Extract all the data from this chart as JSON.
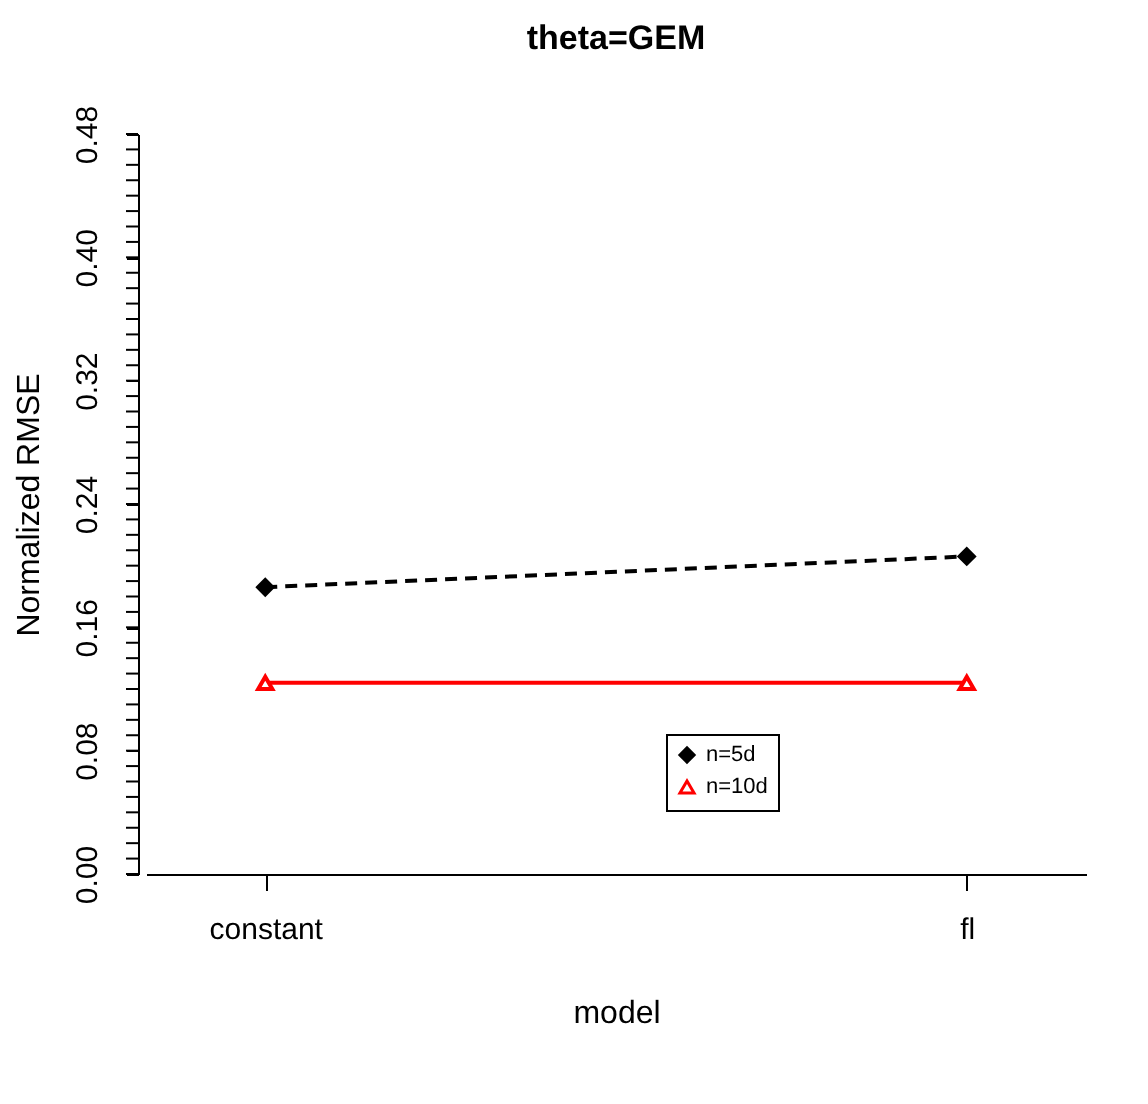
{
  "chart_data": {
    "type": "line",
    "title": "theta=GEM",
    "xlabel": "model",
    "ylabel": "Normalized RMSE",
    "categories": [
      "constant",
      "fl"
    ],
    "series": [
      {
        "name": "n=5d",
        "color": "#000000",
        "values": [
          0.186,
          0.206
        ],
        "marker": "diamond",
        "line_style": "dashed"
      },
      {
        "name": "n=10d",
        "color": "#ff0000",
        "values": [
          0.124,
          0.124
        ],
        "marker": "triangle",
        "line_style": "solid"
      }
    ],
    "ylim": [
      0,
      0.48
    ],
    "yticks": [
      {
        "value": 0,
        "label": "0.00"
      },
      {
        "value": 0.01,
        "label": null
      },
      {
        "value": 0.02,
        "label": null
      },
      {
        "value": 0.03,
        "label": null
      },
      {
        "value": 0.04,
        "label": null
      },
      {
        "value": 0.05,
        "label": null
      },
      {
        "value": 0.06,
        "label": null
      },
      {
        "value": 0.07,
        "label": null
      },
      {
        "value": 0.08,
        "label": "0.08"
      },
      {
        "value": 0.09,
        "label": null
      },
      {
        "value": 0.1,
        "label": null
      },
      {
        "value": 0.11,
        "label": null
      },
      {
        "value": 0.12,
        "label": null
      },
      {
        "value": 0.13,
        "label": null
      },
      {
        "value": 0.14,
        "label": null
      },
      {
        "value": 0.15,
        "label": null
      },
      {
        "value": 0.16,
        "label": "0.16"
      },
      {
        "value": 0.17,
        "label": null
      },
      {
        "value": 0.18,
        "label": null
      },
      {
        "value": 0.19,
        "label": null
      },
      {
        "value": 0.2,
        "label": null
      },
      {
        "value": 0.21,
        "label": null
      },
      {
        "value": 0.22,
        "label": null
      },
      {
        "value": 0.23,
        "label": null
      },
      {
        "value": 0.24,
        "label": "0.24"
      },
      {
        "value": 0.25,
        "label": null
      },
      {
        "value": 0.26,
        "label": null
      },
      {
        "value": 0.27,
        "label": null
      },
      {
        "value": 0.28,
        "label": null
      },
      {
        "value": 0.29,
        "label": null
      },
      {
        "value": 0.3,
        "label": null
      },
      {
        "value": 0.31,
        "label": null
      },
      {
        "value": 0.32,
        "label": "0.32"
      },
      {
        "value": 0.33,
        "label": null
      },
      {
        "value": 0.34,
        "label": null
      },
      {
        "value": 0.35,
        "label": null
      },
      {
        "value": 0.36,
        "label": null
      },
      {
        "value": 0.37,
        "label": null
      },
      {
        "value": 0.38,
        "label": null
      },
      {
        "value": 0.39,
        "label": null
      },
      {
        "value": 0.4,
        "label": "0.40"
      },
      {
        "value": 0.41,
        "label": null
      },
      {
        "value": 0.42,
        "label": null
      },
      {
        "value": 0.43,
        "label": null
      },
      {
        "value": 0.44,
        "label": null
      },
      {
        "value": 0.45,
        "label": null
      },
      {
        "value": 0.46,
        "label": null
      },
      {
        "value": 0.47,
        "label": null
      },
      {
        "value": 0.48,
        "label": "0.48"
      }
    ],
    "grid": false,
    "legend": "bottom"
  }
}
